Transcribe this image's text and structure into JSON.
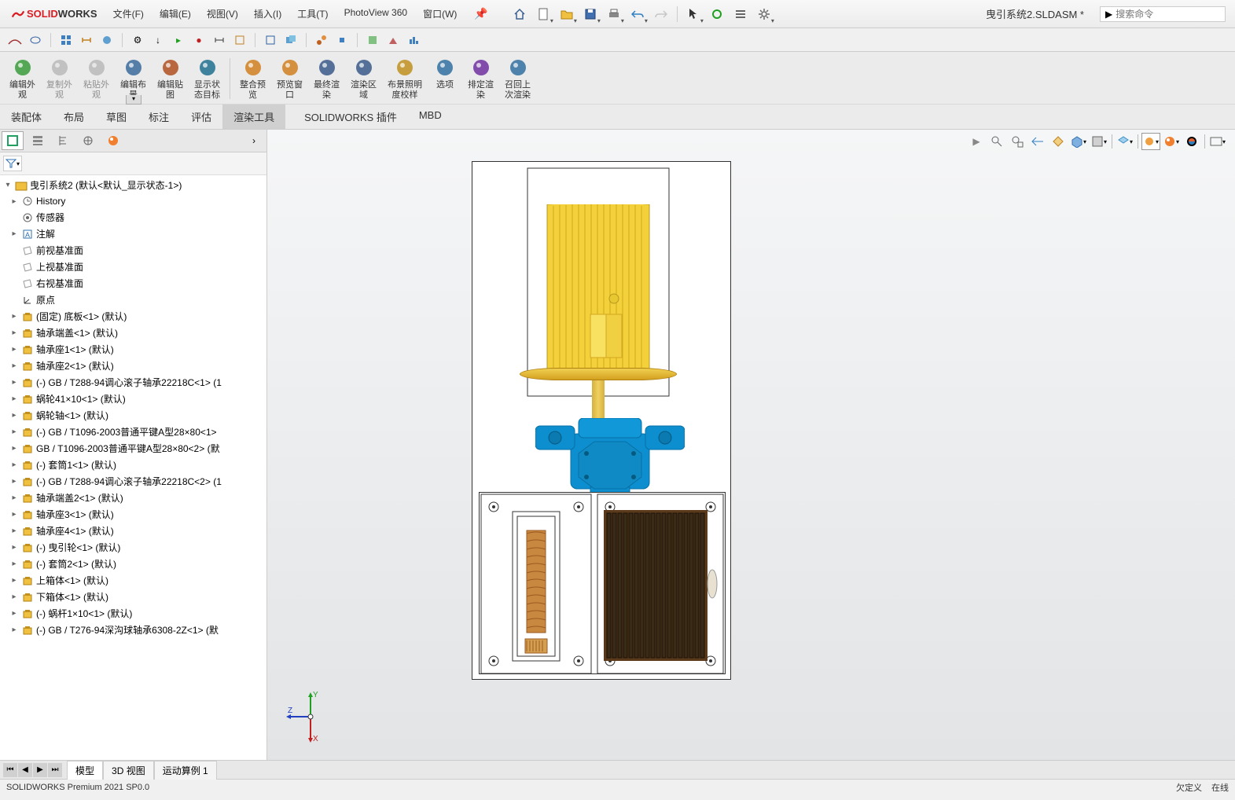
{
  "app": {
    "logo_solid": "SOLID",
    "logo_works": "WORKS",
    "document_title": "曳引系统2.SLDASM *",
    "search_placeholder": "搜索命令"
  },
  "menu": {
    "file": "文件(F)",
    "edit": "编辑(E)",
    "view": "视图(V)",
    "insert": "插入(I)",
    "tools": "工具(T)",
    "photoview": "PhotoView 360",
    "window": "窗口(W)"
  },
  "ribbon": {
    "tools": [
      {
        "label": "编辑外\n观",
        "color": "#3a9b3a"
      },
      {
        "label": "复制外\n观",
        "color": "#888",
        "disabled": true
      },
      {
        "label": "粘贴外\n观",
        "color": "#888",
        "disabled": true
      },
      {
        "label": "编辑布\n景",
        "color": "#3a6b9b"
      },
      {
        "label": "编辑贴\n图",
        "color": "#b05020"
      },
      {
        "label": "显示状\n态目标",
        "color": "#207090"
      },
      {
        "label": "整合预\n览",
        "color": "#d08020"
      },
      {
        "label": "预览窗\n口",
        "color": "#d08020"
      },
      {
        "label": "最终渲\n染",
        "color": "#3a5a8a"
      },
      {
        "label": "渲染区\n域",
        "color": "#3a5a8a"
      },
      {
        "label": "布景照明\n度校样",
        "color": "#c09020"
      },
      {
        "label": "选项",
        "color": "#3070a0"
      },
      {
        "label": "排定渲\n染",
        "color": "#7030a0"
      },
      {
        "label": "召回上\n次渲染",
        "color": "#3070a0"
      }
    ],
    "tabs": {
      "assembly": "装配体",
      "layout": "布局",
      "sketch": "草图",
      "annotate": "标注",
      "evaluate": "评估",
      "render": "渲染工具",
      "addins": "SOLIDWORKS 插件",
      "mbd": "MBD"
    }
  },
  "tree": {
    "root": "曳引系统2  (默认<默认_显示状态-1>)",
    "items": [
      {
        "icon": "history",
        "label": "History",
        "arrow": "▸"
      },
      {
        "icon": "sensor",
        "label": "传感器",
        "arrow": ""
      },
      {
        "icon": "annot",
        "label": "注解",
        "arrow": "▸"
      },
      {
        "icon": "plane",
        "label": "前视基准面",
        "arrow": ""
      },
      {
        "icon": "plane",
        "label": "上视基准面",
        "arrow": ""
      },
      {
        "icon": "plane",
        "label": "右视基准面",
        "arrow": ""
      },
      {
        "icon": "origin",
        "label": "原点",
        "arrow": ""
      },
      {
        "icon": "part",
        "label": "(固定) 底板<1> (默认)",
        "arrow": "▸"
      },
      {
        "icon": "part",
        "label": "轴承端盖<1> (默认)",
        "arrow": "▸"
      },
      {
        "icon": "part",
        "label": "轴承座1<1> (默认)",
        "arrow": "▸"
      },
      {
        "icon": "part",
        "label": "轴承座2<1> (默认)",
        "arrow": "▸"
      },
      {
        "icon": "part",
        "label": "(-) GB / T288-94调心滚子轴承22218C<1> (1",
        "arrow": "▸"
      },
      {
        "icon": "part",
        "label": "蜗轮41×10<1> (默认)",
        "arrow": "▸"
      },
      {
        "icon": "part",
        "label": "蜗轮轴<1> (默认)",
        "arrow": "▸"
      },
      {
        "icon": "part",
        "label": "(-) GB / T1096-2003普通平键A型28×80<1>",
        "arrow": "▸"
      },
      {
        "icon": "part",
        "label": "GB / T1096-2003普通平键A型28×80<2> (默",
        "arrow": "▸"
      },
      {
        "icon": "part",
        "label": "(-) 套筒1<1> (默认)",
        "arrow": "▸"
      },
      {
        "icon": "part",
        "label": "(-) GB / T288-94调心滚子轴承22218C<2> (1",
        "arrow": "▸"
      },
      {
        "icon": "part",
        "label": "轴承端盖2<1> (默认)",
        "arrow": "▸"
      },
      {
        "icon": "part",
        "label": "轴承座3<1> (默认)",
        "arrow": "▸"
      },
      {
        "icon": "part",
        "label": "轴承座4<1> (默认)",
        "arrow": "▸"
      },
      {
        "icon": "part",
        "label": "(-) 曳引轮<1> (默认)",
        "arrow": "▸"
      },
      {
        "icon": "part",
        "label": "(-) 套筒2<1> (默认)",
        "arrow": "▸"
      },
      {
        "icon": "part",
        "label": "上箱体<1> (默认)",
        "arrow": "▸"
      },
      {
        "icon": "part",
        "label": "下箱体<1> (默认)",
        "arrow": "▸"
      },
      {
        "icon": "part",
        "label": "(-) 蜗杆1×10<1> (默认)",
        "arrow": "▸"
      },
      {
        "icon": "part",
        "label": "(-) GB / T276-94深沟球轴承6308-2Z<1> (默",
        "arrow": "▸"
      }
    ]
  },
  "bottom_tabs": {
    "model": "模型",
    "view3d": "3D 视图",
    "motion": "运动算例 1"
  },
  "status": {
    "version": "SOLIDWORKS Premium 2021 SP0.0",
    "underdefined": "欠定义",
    "editing": "在线"
  },
  "colors": {
    "motor_yellow": "#f2d13a",
    "motor_yellow_dark": "#d4a820",
    "housing_blue": "#0d8ecf",
    "housing_blue_dark": "#0670a8",
    "copper": "#c88840",
    "copper_dark": "#9c5a20",
    "frame_line": "#2a2a2a"
  },
  "triad": {
    "x": "X",
    "y": "Y",
    "z": "Z"
  }
}
